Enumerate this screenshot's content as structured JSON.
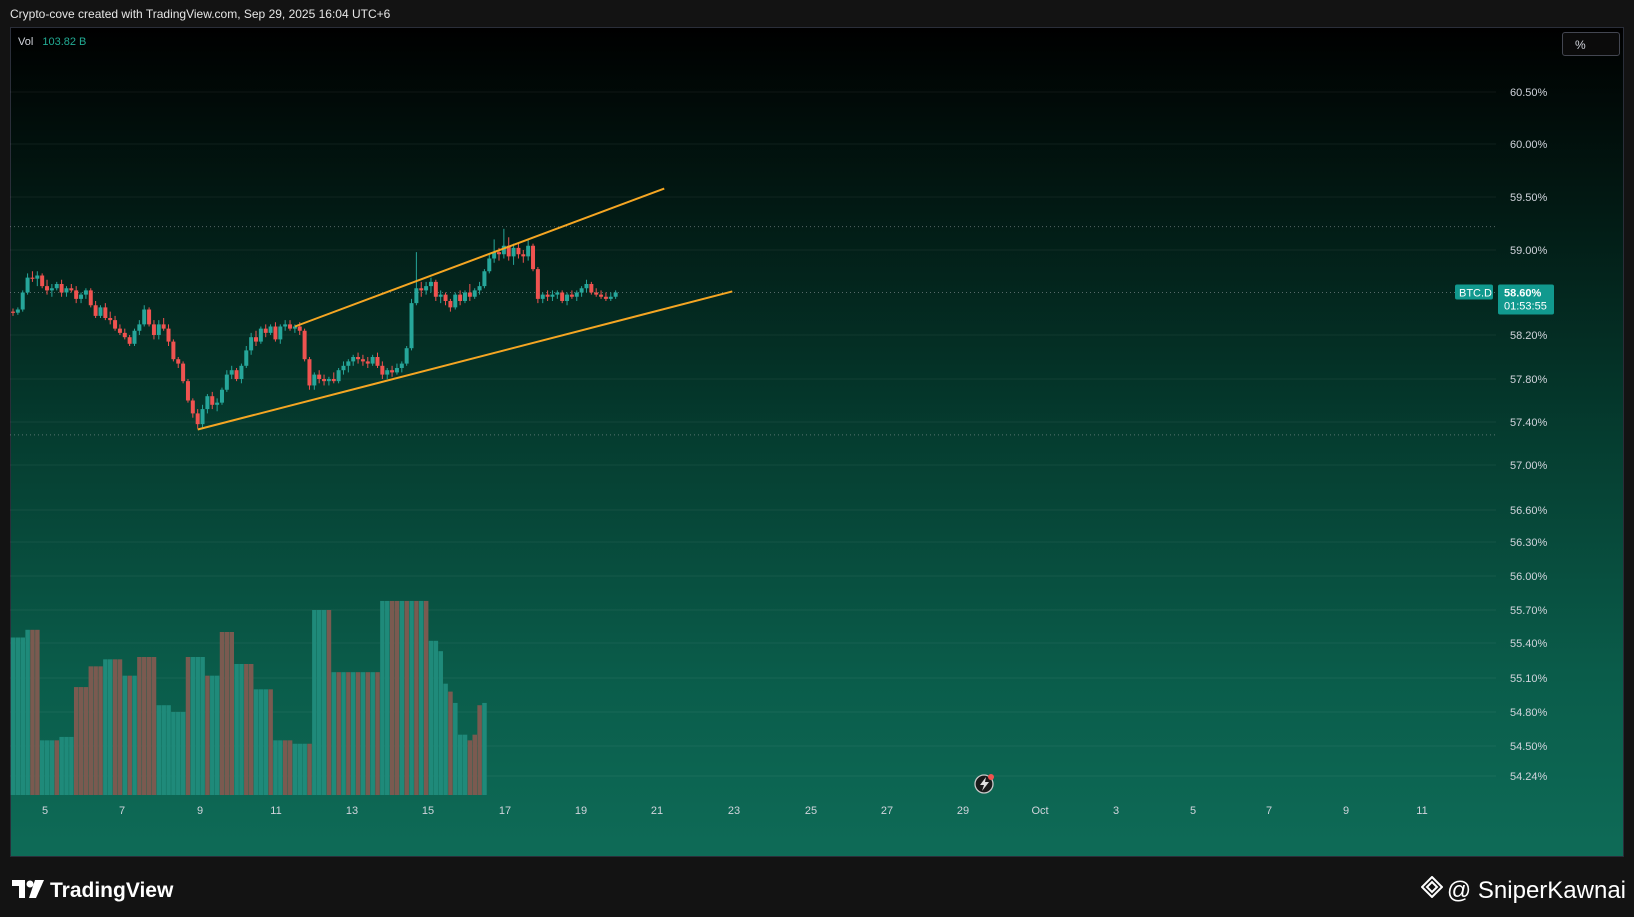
{
  "header": {
    "attribution": "Crypto-cove created with TradingView.com, Sep 29, 2025 16:04 UTC+6"
  },
  "toolbar": {
    "percent_label": "%"
  },
  "volume": {
    "label": "Vol",
    "value": "103.82 B"
  },
  "price_label": {
    "symbol": "BTC.D",
    "value": "58.60%",
    "countdown": "01:53:55"
  },
  "footer": {
    "brand": "TradingView",
    "credit": "@ SniperKawnai"
  },
  "colors": {
    "up": "#26a69a",
    "down": "#ef5350",
    "trendline": "#f5a623",
    "vol_up": "#1f8a7a",
    "vol_down": "#7a5a50",
    "axis_text": "#d1d4dc",
    "price_tag": "#11998e"
  },
  "chart_data": {
    "type": "candlestick",
    "symbol": "BTC.D",
    "interval": "hourly",
    "x_tick_labels": [
      "5",
      "7",
      "9",
      "11",
      "13",
      "15",
      "17",
      "19",
      "21",
      "23",
      "25",
      "27",
      "29",
      "Oct",
      "3",
      "5",
      "7",
      "9",
      "11"
    ],
    "y_tick_labels": [
      "60.50%",
      "60.00%",
      "59.50%",
      "59.00%",
      "58.20%",
      "57.80%",
      "57.40%",
      "57.00%",
      "56.60%",
      "56.30%",
      "56.00%",
      "55.70%",
      "55.40%",
      "55.10%",
      "54.80%",
      "54.50%",
      "54.24%"
    ],
    "y_ticks": [
      60.5,
      60.0,
      59.5,
      59.0,
      58.2,
      57.8,
      57.4,
      57.0,
      56.6,
      56.3,
      56.0,
      55.7,
      55.4,
      55.1,
      54.8,
      54.5,
      54.24
    ],
    "current_value": 58.6,
    "candles": [
      [
        58.42,
        58.45,
        58.38,
        58.41
      ],
      [
        58.41,
        58.46,
        58.39,
        58.44
      ],
      [
        58.44,
        58.62,
        58.42,
        58.6
      ],
      [
        58.6,
        58.78,
        58.58,
        58.74
      ],
      [
        58.74,
        58.8,
        58.7,
        58.73
      ],
      [
        58.73,
        58.8,
        58.66,
        58.76
      ],
      [
        58.76,
        58.78,
        58.64,
        58.66
      ],
      [
        58.66,
        58.72,
        58.58,
        58.62
      ],
      [
        58.62,
        58.68,
        58.56,
        58.64
      ],
      [
        58.64,
        58.7,
        58.62,
        58.68
      ],
      [
        58.68,
        58.72,
        58.56,
        58.6
      ],
      [
        58.6,
        58.66,
        58.56,
        58.64
      ],
      [
        58.64,
        58.68,
        58.6,
        58.62
      ],
      [
        58.62,
        58.66,
        58.5,
        58.54
      ],
      [
        58.54,
        58.6,
        58.5,
        58.58
      ],
      [
        58.58,
        58.64,
        58.54,
        58.62
      ],
      [
        58.62,
        58.64,
        58.46,
        58.48
      ],
      [
        58.48,
        58.52,
        58.36,
        58.38
      ],
      [
        58.38,
        58.48,
        58.36,
        58.46
      ],
      [
        58.46,
        58.5,
        58.34,
        58.36
      ],
      [
        58.36,
        58.42,
        58.3,
        58.34
      ],
      [
        58.34,
        58.38,
        58.24,
        58.26
      ],
      [
        58.26,
        58.3,
        58.2,
        58.22
      ],
      [
        58.22,
        58.26,
        58.16,
        58.18
      ],
      [
        58.18,
        58.2,
        58.1,
        58.12
      ],
      [
        58.12,
        58.26,
        58.1,
        58.24
      ],
      [
        58.24,
        58.34,
        58.2,
        58.3
      ],
      [
        58.3,
        58.48,
        58.28,
        58.44
      ],
      [
        58.44,
        58.46,
        58.28,
        58.3
      ],
      [
        58.3,
        58.34,
        58.16,
        58.2
      ],
      [
        58.2,
        58.34,
        58.16,
        58.3
      ],
      [
        58.3,
        58.36,
        58.24,
        58.26
      ],
      [
        58.26,
        58.3,
        58.1,
        58.14
      ],
      [
        58.14,
        58.16,
        57.96,
        57.98
      ],
      [
        57.98,
        58.0,
        57.9,
        57.94
      ],
      [
        57.94,
        57.96,
        57.76,
        57.78
      ],
      [
        57.78,
        57.8,
        57.58,
        57.6
      ],
      [
        57.6,
        57.62,
        57.44,
        57.48
      ],
      [
        57.48,
        57.52,
        57.34,
        57.38
      ],
      [
        57.38,
        57.56,
        57.34,
        57.52
      ],
      [
        57.52,
        57.66,
        57.48,
        57.64
      ],
      [
        57.64,
        57.68,
        57.52,
        57.56
      ],
      [
        57.56,
        57.62,
        57.5,
        57.58
      ],
      [
        57.58,
        57.72,
        57.56,
        57.7
      ],
      [
        57.7,
        57.88,
        57.68,
        57.84
      ],
      [
        57.84,
        57.92,
        57.8,
        57.88
      ],
      [
        57.88,
        57.9,
        57.78,
        57.8
      ],
      [
        57.8,
        57.94,
        57.76,
        57.92
      ],
      [
        57.92,
        58.1,
        57.9,
        58.06
      ],
      [
        58.06,
        58.22,
        58.02,
        58.18
      ],
      [
        58.18,
        58.24,
        58.1,
        58.14
      ],
      [
        58.14,
        58.28,
        58.12,
        58.26
      ],
      [
        58.26,
        58.3,
        58.18,
        58.22
      ],
      [
        58.22,
        58.3,
        58.2,
        58.28
      ],
      [
        58.28,
        58.32,
        58.14,
        58.16
      ],
      [
        58.16,
        58.3,
        58.12,
        58.28
      ],
      [
        58.28,
        58.34,
        58.24,
        58.3
      ],
      [
        58.3,
        58.34,
        58.24,
        58.26
      ],
      [
        58.26,
        58.3,
        58.22,
        58.28
      ],
      [
        58.28,
        58.32,
        58.2,
        58.24
      ],
      [
        58.24,
        58.26,
        57.96,
        57.98
      ],
      [
        57.98,
        58.0,
        57.7,
        57.74
      ],
      [
        57.74,
        57.86,
        57.7,
        57.84
      ],
      [
        57.84,
        57.88,
        57.76,
        57.8
      ],
      [
        57.8,
        57.84,
        57.74,
        57.78
      ],
      [
        57.78,
        57.82,
        57.74,
        57.8
      ],
      [
        57.8,
        57.86,
        57.76,
        57.78
      ],
      [
        57.78,
        57.9,
        57.76,
        57.88
      ],
      [
        57.88,
        57.96,
        57.84,
        57.92
      ],
      [
        57.92,
        57.98,
        57.86,
        57.96
      ],
      [
        57.96,
        58.02,
        57.92,
        58.0
      ],
      [
        58.0,
        58.04,
        57.94,
        57.98
      ],
      [
        57.98,
        58.02,
        57.92,
        57.96
      ],
      [
        57.96,
        58.0,
        57.9,
        57.94
      ],
      [
        57.94,
        58.02,
        57.92,
        58.0
      ],
      [
        58.0,
        58.04,
        57.9,
        57.92
      ],
      [
        57.92,
        57.96,
        57.8,
        57.84
      ],
      [
        57.84,
        57.9,
        57.8,
        57.88
      ],
      [
        57.88,
        57.92,
        57.82,
        57.86
      ],
      [
        57.86,
        57.94,
        57.84,
        57.9
      ],
      [
        57.9,
        57.96,
        57.86,
        57.94
      ],
      [
        57.94,
        58.1,
        57.92,
        58.08
      ],
      [
        58.08,
        58.54,
        58.06,
        58.5
      ],
      [
        58.5,
        58.98,
        58.48,
        58.64
      ],
      [
        58.64,
        58.7,
        58.56,
        58.62
      ],
      [
        58.62,
        58.7,
        58.58,
        58.66
      ],
      [
        58.66,
        58.74,
        58.6,
        58.7
      ],
      [
        58.7,
        58.72,
        58.52,
        58.56
      ],
      [
        58.56,
        58.62,
        58.5,
        58.58
      ],
      [
        58.58,
        58.6,
        58.48,
        58.52
      ],
      [
        58.52,
        58.54,
        58.42,
        58.46
      ],
      [
        58.46,
        58.6,
        58.44,
        58.58
      ],
      [
        58.58,
        58.62,
        58.48,
        58.52
      ],
      [
        58.52,
        58.62,
        58.5,
        58.6
      ],
      [
        58.6,
        58.68,
        58.52,
        58.56
      ],
      [
        58.56,
        58.64,
        58.54,
        58.62
      ],
      [
        58.62,
        58.7,
        58.58,
        58.66
      ],
      [
        58.66,
        58.82,
        58.64,
        58.8
      ],
      [
        58.8,
        58.96,
        58.78,
        58.92
      ],
      [
        58.92,
        59.1,
        58.88,
        58.98
      ],
      [
        58.98,
        59.02,
        58.9,
        58.96
      ],
      [
        58.96,
        59.2,
        58.92,
        59.04
      ],
      [
        59.04,
        59.12,
        58.9,
        58.94
      ],
      [
        58.94,
        59.06,
        58.86,
        59.02
      ],
      [
        59.02,
        59.06,
        58.92,
        58.96
      ],
      [
        58.96,
        59.0,
        58.88,
        58.94
      ],
      [
        58.94,
        59.1,
        58.9,
        59.04
      ],
      [
        59.04,
        59.06,
        58.8,
        58.82
      ],
      [
        58.82,
        58.84,
        58.5,
        58.54
      ],
      [
        58.54,
        58.6,
        58.5,
        58.58
      ],
      [
        58.58,
        58.62,
        58.52,
        58.56
      ],
      [
        58.56,
        58.62,
        58.52,
        58.58
      ],
      [
        58.58,
        58.62,
        58.54,
        58.6
      ],
      [
        58.6,
        58.62,
        58.5,
        58.52
      ],
      [
        58.52,
        58.6,
        58.48,
        58.58
      ],
      [
        58.58,
        58.62,
        58.54,
        58.56
      ],
      [
        58.56,
        58.62,
        58.52,
        58.6
      ],
      [
        58.6,
        58.66,
        58.56,
        58.64
      ],
      [
        58.64,
        58.72,
        58.6,
        58.68
      ],
      [
        58.68,
        58.7,
        58.58,
        58.6
      ],
      [
        58.6,
        58.64,
        58.56,
        58.58
      ],
      [
        58.58,
        58.62,
        58.54,
        58.56
      ],
      [
        58.56,
        58.6,
        58.52,
        58.54
      ],
      [
        58.54,
        58.6,
        58.52,
        58.56
      ],
      [
        58.56,
        58.62,
        58.54,
        58.6
      ]
    ],
    "volume_bars": [
      [
        55.45,
        1
      ],
      [
        55.45,
        1
      ],
      [
        55.45,
        1
      ],
      [
        55.52,
        1
      ],
      [
        55.52,
        0
      ],
      [
        55.52,
        0
      ],
      [
        54.55,
        1
      ],
      [
        54.55,
        1
      ],
      [
        54.55,
        1
      ],
      [
        54.55,
        0
      ],
      [
        54.58,
        1
      ],
      [
        54.58,
        1
      ],
      [
        54.58,
        1
      ],
      [
        55.02,
        0
      ],
      [
        55.02,
        0
      ],
      [
        55.02,
        0
      ],
      [
        55.2,
        0
      ],
      [
        55.2,
        0
      ],
      [
        55.2,
        0
      ],
      [
        55.26,
        1
      ],
      [
        55.26,
        1
      ],
      [
        55.26,
        0
      ],
      [
        55.26,
        0
      ],
      [
        55.12,
        1
      ],
      [
        55.12,
        0
      ],
      [
        55.12,
        1
      ],
      [
        55.28,
        0
      ],
      [
        55.28,
        0
      ],
      [
        55.28,
        0
      ],
      [
        55.28,
        0
      ],
      [
        54.86,
        1
      ],
      [
        54.86,
        1
      ],
      [
        54.86,
        1
      ],
      [
        54.8,
        1
      ],
      [
        54.8,
        1
      ],
      [
        54.8,
        1
      ],
      [
        55.28,
        0
      ],
      [
        55.28,
        1
      ],
      [
        55.28,
        1
      ],
      [
        55.28,
        1
      ],
      [
        55.12,
        0
      ],
      [
        55.12,
        1
      ],
      [
        55.12,
        1
      ],
      [
        55.5,
        0
      ],
      [
        55.5,
        0
      ],
      [
        55.5,
        0
      ],
      [
        55.22,
        1
      ],
      [
        55.22,
        1
      ],
      [
        55.22,
        0
      ],
      [
        55.22,
        0
      ],
      [
        55.0,
        1
      ],
      [
        55.0,
        1
      ],
      [
        55.0,
        1
      ],
      [
        55.0,
        0
      ],
      [
        54.55,
        1
      ],
      [
        54.55,
        1
      ],
      [
        54.55,
        0
      ],
      [
        54.55,
        0
      ],
      [
        54.52,
        1
      ],
      [
        54.52,
        1
      ],
      [
        54.52,
        1
      ],
      [
        54.52,
        0
      ],
      [
        55.7,
        1
      ],
      [
        55.7,
        1
      ],
      [
        55.7,
        1
      ],
      [
        55.7,
        0
      ],
      [
        55.15,
        1
      ],
      [
        55.15,
        0
      ],
      [
        55.15,
        1
      ],
      [
        55.15,
        0
      ],
      [
        55.15,
        1
      ],
      [
        55.15,
        0
      ],
      [
        55.15,
        1
      ],
      [
        55.15,
        0
      ],
      [
        55.15,
        1
      ],
      [
        55.15,
        0
      ],
      [
        55.78,
        1
      ],
      [
        55.78,
        1
      ],
      [
        55.78,
        0
      ],
      [
        55.78,
        0
      ],
      [
        55.78,
        1
      ],
      [
        55.78,
        0
      ],
      [
        55.78,
        1
      ],
      [
        55.78,
        0
      ],
      [
        55.78,
        1
      ],
      [
        55.78,
        0
      ],
      [
        55.42,
        1
      ],
      [
        55.42,
        1
      ],
      [
        55.33,
        1
      ],
      [
        55.05,
        1
      ],
      [
        54.98,
        0
      ],
      [
        54.88,
        1
      ],
      [
        54.6,
        1
      ],
      [
        54.6,
        1
      ],
      [
        54.55,
        0
      ],
      [
        54.6,
        0
      ],
      [
        54.86,
        0
      ],
      [
        54.88,
        1
      ]
    ],
    "trendlines": [
      {
        "from_index": 38,
        "from_value": 57.33,
        "to_index": 148,
        "to_value": 58.61
      },
      {
        "from_index": 58,
        "from_value": 58.28,
        "to_index": 134,
        "to_value": 59.58
      }
    ],
    "horizontal_levels": [
      59.22,
      58.6,
      57.28
    ]
  }
}
